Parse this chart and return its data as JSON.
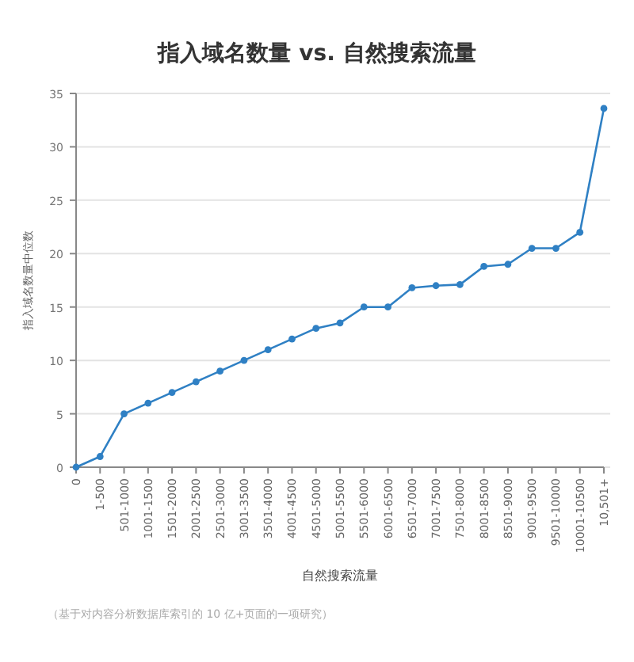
{
  "chart_data": {
    "type": "line",
    "title": "指入域名数量 vs. 自然搜索流量",
    "xlabel": "自然搜索流量",
    "ylabel": "指入域名数量中位数",
    "categories": [
      "0",
      "1-500",
      "501-1000",
      "1001-1500",
      "1501-2000",
      "2001-2500",
      "2501-3000",
      "3001-3500",
      "3501-4000",
      "4001-4500",
      "4501-5000",
      "5001-5500",
      "5501-6000",
      "6001-6500",
      "6501-7000",
      "7001-7500",
      "7501-8000",
      "8001-8500",
      "8501-9000",
      "9001-9500",
      "9501-10000",
      "10001-10500",
      "10,501+"
    ],
    "series": [
      {
        "color": "#2f80c4",
        "values": [
          0,
          1,
          5,
          6,
          7,
          8,
          9,
          10,
          11,
          12,
          13,
          13.5,
          15,
          15,
          16.8,
          17,
          17.1,
          18.8,
          19,
          20.5,
          20.5,
          22,
          33.6
        ]
      }
    ],
    "ylim": [
      0,
      35
    ],
    "yticks": [
      0,
      5,
      10,
      15,
      20,
      25,
      30,
      35
    ],
    "grid": "y",
    "marker": "circle",
    "line_style": "solid",
    "annotations": [
      "（基于对内容分析数据库索引的 10 亿+页面的一项研究）"
    ]
  }
}
